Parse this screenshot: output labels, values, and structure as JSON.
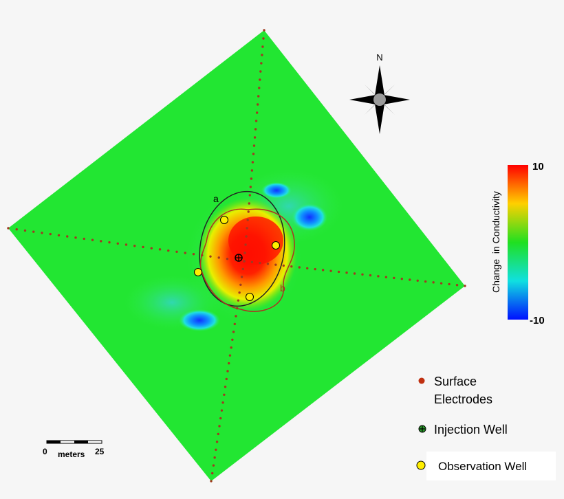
{
  "map": {
    "north_label": "N",
    "line_labels": [
      "a",
      "b"
    ],
    "colorbar": {
      "label": "Change  in Conductivity",
      "max": 10,
      "min": -10
    },
    "legend": [
      "Surface\nElectrodes",
      "Injection Well",
      "Observation Well"
    ],
    "scale_bar": {
      "start": 0,
      "unit": "meters",
      "end": 25
    }
  }
}
